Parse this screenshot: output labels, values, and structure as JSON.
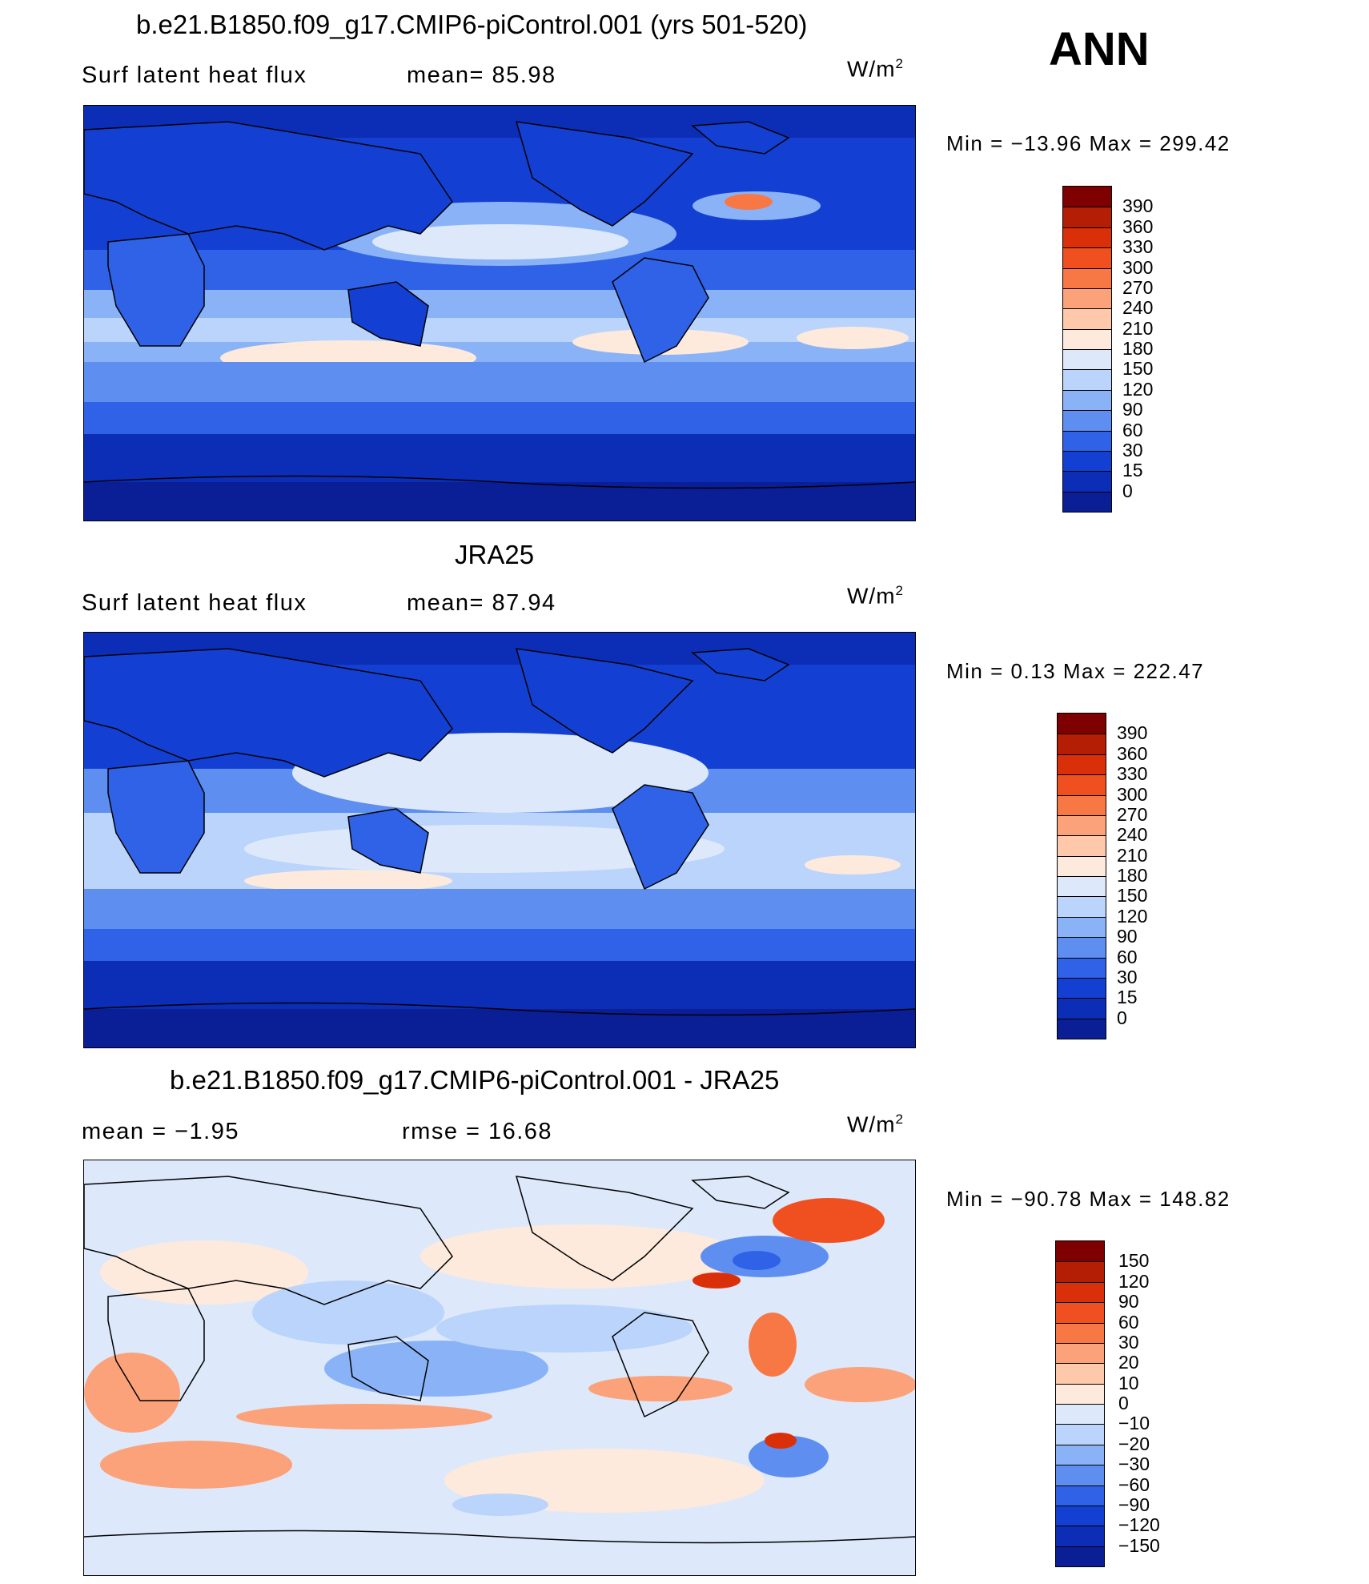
{
  "season": "ANN",
  "panels": [
    {
      "title": "b.e21.B1850.f09_g17.CMIP6-piControl.001 (yrs 501-520)",
      "variable": "Surf latent heat flux",
      "stat": "mean=  85.98",
      "units": "W/m",
      "units_sup": "2",
      "minmax": "Min = −13.96 Max = 299.42"
    },
    {
      "title": "JRA25",
      "variable": "Surf latent heat flux",
      "stat": "mean=  87.94",
      "units": "W/m",
      "units_sup": "2",
      "minmax": "Min =    0.13 Max = 222.47"
    },
    {
      "title": "b.e21.B1850.f09_g17.CMIP6-piControl.001 - JRA25",
      "mean": "mean =   −1.95",
      "rmse": "rmse =   16.68",
      "units": "W/m",
      "units_sup": "2",
      "minmax": "Min = −90.78 Max = 148.82"
    }
  ],
  "colorbars": {
    "abs": {
      "labels": [
        "390",
        "360",
        "330",
        "300",
        "270",
        "240",
        "210",
        "180",
        "150",
        "120",
        "90",
        "60",
        "30",
        "15",
        "0"
      ],
      "colors": [
        "#7f0000",
        "#b41e05",
        "#d9300a",
        "#f05020",
        "#f87845",
        "#fba27a",
        "#fdc9aa",
        "#fdeadc",
        "#dde9fa",
        "#bbd4fb",
        "#8ab3f7",
        "#5d8ef0",
        "#2f62e6",
        "#1340d2",
        "#0c2db6",
        "#0a1e96"
      ]
    },
    "diff": {
      "labels": [
        "150",
        "120",
        "90",
        "60",
        "30",
        "20",
        "10",
        "0",
        "−10",
        "−20",
        "−30",
        "−60",
        "−90",
        "−120",
        "−150"
      ],
      "colors": [
        "#7f0000",
        "#b41e05",
        "#d9300a",
        "#f05020",
        "#f87845",
        "#fba27a",
        "#fdc9aa",
        "#fdeadc",
        "#dde9fa",
        "#bbd4fb",
        "#8ab3f7",
        "#5d8ef0",
        "#2f62e6",
        "#1340d2",
        "#0c2db6",
        "#0a1e96"
      ]
    }
  }
}
